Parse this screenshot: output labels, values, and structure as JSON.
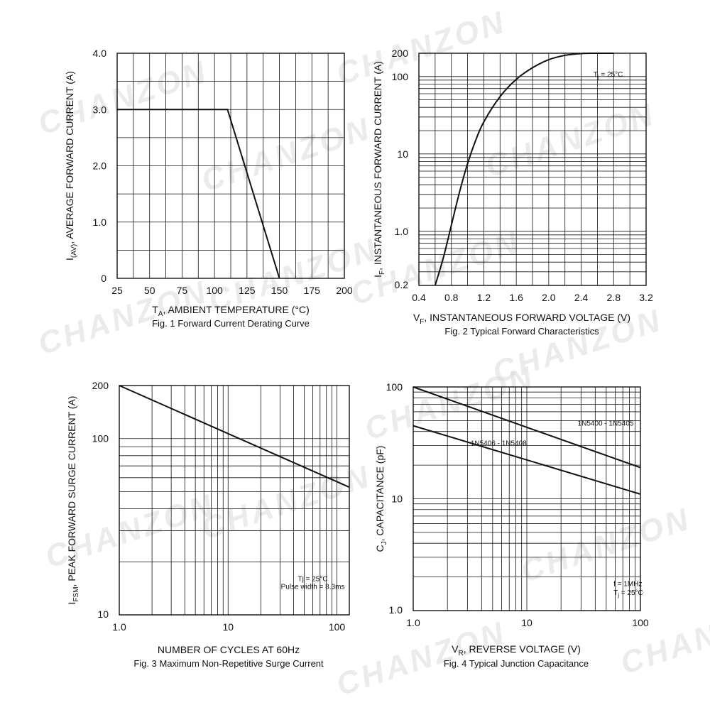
{
  "watermark": "CHANZON",
  "chart_data": [
    {
      "id": "fig1",
      "type": "line",
      "caption": "Fig. 1  Forward Current Derating Curve",
      "xlabel_main": "T",
      "xlabel_sub": "A",
      "xlabel_rest": ", AMBIENT TEMPERATURE (°C)",
      "ylabel_main": "I",
      "ylabel_sub": "(AV)",
      "ylabel_rest": ", AVERAGE FORWARD CURRENT (A)",
      "xscale": "linear",
      "yscale": "linear",
      "xlim": [
        25,
        200
      ],
      "ylim": [
        0,
        4.0
      ],
      "xticks": [
        25,
        50,
        75,
        100,
        125,
        150,
        175,
        200
      ],
      "xtick_labels": [
        "25",
        "50",
        "75",
        "100",
        "125",
        "150",
        "175",
        "200"
      ],
      "yticks": [
        0,
        1.0,
        2.0,
        3.0,
        4.0
      ],
      "ytick_labels": [
        "0",
        "1.0",
        "2.0",
        "3.0",
        "4.0"
      ],
      "xgrid": [
        25,
        37.5,
        50,
        62.5,
        75,
        87.5,
        100,
        112.5,
        125,
        137.5,
        150,
        162.5,
        175,
        187.5,
        200
      ],
      "ygrid": [
        0,
        0.5,
        1.0,
        1.5,
        2.0,
        2.5,
        3.0,
        3.5,
        4.0
      ],
      "grid": true,
      "series": [
        {
          "x": [
            25,
            110,
            150
          ],
          "y": [
            3.0,
            3.0,
            0
          ]
        }
      ],
      "annotations": []
    },
    {
      "id": "fig2",
      "type": "line",
      "caption": "Fig. 2  Typical Forward Characteristics",
      "xlabel_main": "V",
      "xlabel_sub": "F",
      "xlabel_rest": ", INSTANTANEOUS FORWARD VOLTAGE (V)",
      "ylabel_main": "I",
      "ylabel_sub": "F",
      "ylabel_rest": ", INSTANTANEOUS FORWARD CURRENT (A)",
      "xscale": "linear",
      "yscale": "log",
      "xlim": [
        0.4,
        3.2
      ],
      "ylim": [
        0.2,
        200
      ],
      "xticks": [
        0.4,
        0.8,
        1.2,
        1.6,
        2.0,
        2.4,
        2.8,
        3.2
      ],
      "xtick_labels": [
        "0.4",
        "0.8",
        "1.2",
        "1.6",
        "2.0",
        "2.4",
        "2.8",
        "3.2"
      ],
      "yticks": [
        0.2,
        1.0,
        10,
        100,
        200
      ],
      "ytick_labels": [
        "0.2",
        "1.0",
        "10",
        "100",
        "200"
      ],
      "xgrid": [
        0.4,
        0.6,
        0.8,
        1.0,
        1.2,
        1.4,
        1.6,
        1.8,
        2.0,
        2.2,
        2.4,
        2.6,
        2.8,
        3.0,
        3.2
      ],
      "ygrid": [
        0.2,
        0.3,
        0.4,
        0.5,
        0.6,
        0.7,
        0.8,
        0.9,
        1,
        2,
        3,
        4,
        5,
        6,
        7,
        8,
        9,
        10,
        20,
        30,
        40,
        50,
        60,
        70,
        80,
        90,
        100,
        200
      ],
      "grid": true,
      "series": [
        {
          "x": [
            0.6,
            0.7,
            0.8,
            0.9,
            1.0,
            1.1,
            1.2,
            1.4,
            1.6,
            1.8,
            2.0,
            2.2,
            2.4,
            2.6,
            2.8
          ],
          "y": [
            0.2,
            0.45,
            1.2,
            3.2,
            7.5,
            15,
            26,
            55,
            92,
            130,
            165,
            188,
            198,
            200,
            200
          ]
        }
      ],
      "annotations": [
        {
          "main": "T",
          "sub": "j",
          "rest": " = 25°C",
          "x": 2.55,
          "y": 100
        }
      ]
    },
    {
      "id": "fig3",
      "type": "line",
      "caption": "Fig. 3  Maximum Non-Repetitive Surge Current",
      "xlabel_main": "NUMBER OF CYCLES AT 60Hz",
      "xlabel_sub": "",
      "xlabel_rest": "",
      "ylabel_main": "I",
      "ylabel_sub": "FSM",
      "ylabel_rest": ", PEAK FORWARD SURGE CURRENT (A)",
      "xscale": "log",
      "yscale": "log",
      "xlim": [
        1,
        130
      ],
      "ylim": [
        10,
        200
      ],
      "xticks": [
        1,
        10,
        100
      ],
      "xtick_labels": [
        "1.0",
        "10",
        "100"
      ],
      "yticks": [
        10,
        100,
        200
      ],
      "ytick_labels": [
        "10",
        "100",
        "200"
      ],
      "xgrid": [
        1,
        2,
        3,
        4,
        5,
        6,
        7,
        8,
        9,
        10,
        20,
        30,
        40,
        50,
        60,
        70,
        80,
        90,
        100
      ],
      "ygrid": [
        10,
        20,
        30,
        40,
        50,
        60,
        70,
        80,
        90,
        100,
        200
      ],
      "grid": true,
      "series": [
        {
          "x": [
            1,
            130
          ],
          "y": [
            200,
            53
          ]
        }
      ],
      "annotations": [
        {
          "main": "Tj = 25°C",
          "sub": "",
          "rest": "",
          "x": 60,
          "y": 15.5
        },
        {
          "main": "Pulse width = 8.3ms",
          "sub": "",
          "rest": "",
          "x": 60,
          "y": 14.0
        }
      ]
    },
    {
      "id": "fig4",
      "type": "line",
      "caption": "Fig. 4  Typical Junction Capacitance",
      "xlabel_main": "V",
      "xlabel_sub": "R",
      "xlabel_rest": ", REVERSE VOLTAGE (V)",
      "ylabel_main": "C",
      "ylabel_sub": "J",
      "ylabel_rest": ", CAPACITANCE (pF)",
      "xscale": "log",
      "yscale": "log",
      "xlim": [
        1,
        100
      ],
      "ylim": [
        1,
        100
      ],
      "xticks": [
        1,
        10,
        100
      ],
      "xtick_labels": [
        "1.0",
        "10",
        "100"
      ],
      "yticks": [
        1,
        10,
        100
      ],
      "ytick_labels": [
        "1.0",
        "10",
        "100"
      ],
      "xgrid": [
        1,
        2,
        3,
        4,
        5,
        6,
        7,
        8,
        9,
        10,
        20,
        30,
        40,
        50,
        60,
        70,
        80,
        90,
        100
      ],
      "ygrid": [
        1,
        2,
        3,
        4,
        5,
        6,
        7,
        8,
        9,
        10,
        20,
        30,
        40,
        50,
        60,
        70,
        80,
        90,
        100
      ],
      "grid": true,
      "series": [
        {
          "name": "1N5400 - 1N5405",
          "x": [
            1,
            100
          ],
          "y": [
            100,
            19
          ]
        },
        {
          "name": "1N5406 - 1N5408",
          "x": [
            1,
            100
          ],
          "y": [
            45,
            11
          ]
        }
      ],
      "annotations": [
        {
          "main": "1N5400 - 1N5405",
          "sub": "",
          "rest": "",
          "x": 28,
          "y": 45
        },
        {
          "main": "1N5406 - 1N5408",
          "sub": "",
          "rest": "",
          "x": 3.2,
          "y": 30
        },
        {
          "main": "f = 1MHz",
          "sub": "",
          "rest": "",
          "x": 58,
          "y": 1.65
        },
        {
          "main": "T",
          "sub": "j",
          "rest": " = 25°C",
          "x": 58,
          "y": 1.38
        }
      ]
    }
  ]
}
